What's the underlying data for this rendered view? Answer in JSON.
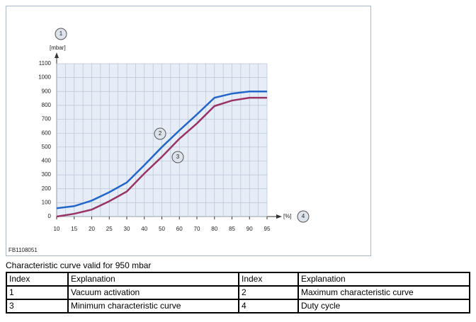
{
  "chart_data": {
    "type": "line",
    "categories": [
      "10",
      "15",
      "20",
      "25",
      "30",
      "40",
      "50",
      "60",
      "70",
      "80",
      "85",
      "90",
      "95"
    ],
    "series": [
      {
        "label": "2",
        "color": "#2266cc",
        "values": [
          60,
          75,
          115,
          175,
          245,
          370,
          500,
          620,
          735,
          855,
          885,
          900,
          900
        ]
      },
      {
        "label": "3",
        "color": "#993366",
        "values": [
          0,
          20,
          50,
          110,
          180,
          310,
          430,
          560,
          670,
          795,
          835,
          855,
          855
        ]
      }
    ],
    "ylim": [
      0,
      1100
    ],
    "yticks": [
      0,
      100,
      200,
      300,
      400,
      500,
      600,
      700,
      800,
      900,
      1000,
      1100
    ],
    "y_label": "[mbar]",
    "y_marker": "1",
    "x_label": "[%]",
    "x_marker": "4",
    "grid": true
  },
  "figure_id": "FB1108051",
  "caption": "Characteristic curve valid for 950 mbar",
  "table": {
    "rows": [
      [
        "Index",
        "Explanation",
        "Index",
        "Explanation"
      ],
      [
        "1",
        "Vacuum activation",
        "2",
        "Maximum characteristic curve"
      ],
      [
        "3",
        "Minimum characteristic curve",
        "4",
        "Duty cycle"
      ]
    ]
  }
}
